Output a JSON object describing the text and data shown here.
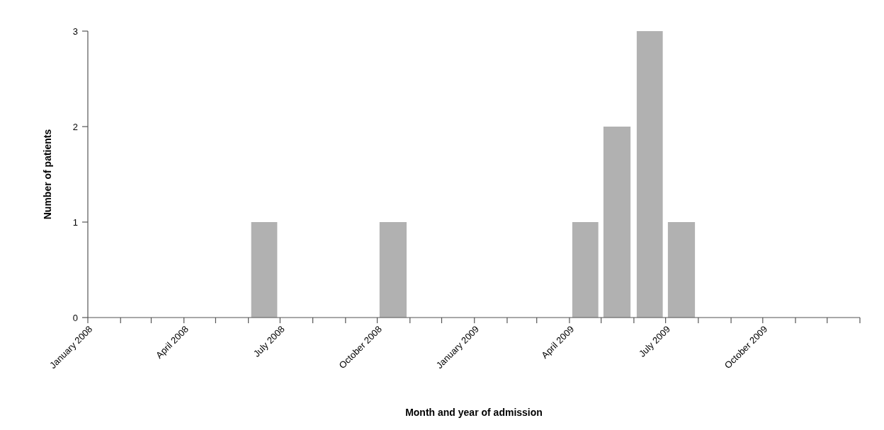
{
  "chart_data": {
    "type": "bar",
    "xlabel": "Month and year of admission",
    "ylabel": "Number of patients",
    "x": [
      "2008-01-16",
      "2008-02-15",
      "2008-03-16",
      "2008-04-16",
      "2008-05-16",
      "2008-06-16",
      "2008-07-16",
      "2008-08-16",
      "2008-09-16",
      "2008-10-16",
      "2008-11-16",
      "2008-12-16",
      "2009-01-16",
      "2009-02-15",
      "2009-03-16",
      "2009-04-16",
      "2009-05-16",
      "2009-06-16",
      "2009-07-16",
      "2009-08-16",
      "2009-09-16",
      "2009-10-16",
      "2009-11-16",
      "2009-12-16"
    ],
    "values": [
      0,
      0,
      0,
      0,
      0,
      1,
      0,
      0,
      0,
      1,
      0,
      0,
      0,
      0,
      0,
      1,
      2,
      3,
      1,
      0,
      0,
      0,
      0,
      0
    ],
    "color": "#b1b1b1",
    "xlim": [
      "2008-01",
      "2010-01"
    ],
    "xticks": [
      {
        "value": "2008-01",
        "label": "January 2008"
      },
      {
        "value": "2008-02",
        "label": null
      },
      {
        "value": "2008-03",
        "label": null
      },
      {
        "value": "2008-04",
        "label": "April 2008"
      },
      {
        "value": "2008-05",
        "label": null
      },
      {
        "value": "2008-06",
        "label": null
      },
      {
        "value": "2008-07",
        "label": "July 2008"
      },
      {
        "value": "2008-08",
        "label": null
      },
      {
        "value": "2008-09",
        "label": null
      },
      {
        "value": "2008-10",
        "label": "October 2008"
      },
      {
        "value": "2008-11",
        "label": null
      },
      {
        "value": "2008-12",
        "label": null
      },
      {
        "value": "2009-01",
        "label": "January 2009"
      },
      {
        "value": "2009-02",
        "label": null
      },
      {
        "value": "2009-03",
        "label": null
      },
      {
        "value": "2009-04",
        "label": "April 2009"
      },
      {
        "value": "2009-05",
        "label": null
      },
      {
        "value": "2009-06",
        "label": null
      },
      {
        "value": "2009-07",
        "label": "July 2009"
      },
      {
        "value": "2009-08",
        "label": null
      },
      {
        "value": "2009-09",
        "label": null
      },
      {
        "value": "2009-10",
        "label": "October 2009"
      },
      {
        "value": "2009-11",
        "label": null
      },
      {
        "value": "2009-12",
        "label": null
      },
      {
        "value": "2010-01",
        "label": null
      }
    ],
    "ylim": [
      0,
      3
    ],
    "yticks": [
      0,
      1,
      2,
      3
    ],
    "grid": false
  }
}
